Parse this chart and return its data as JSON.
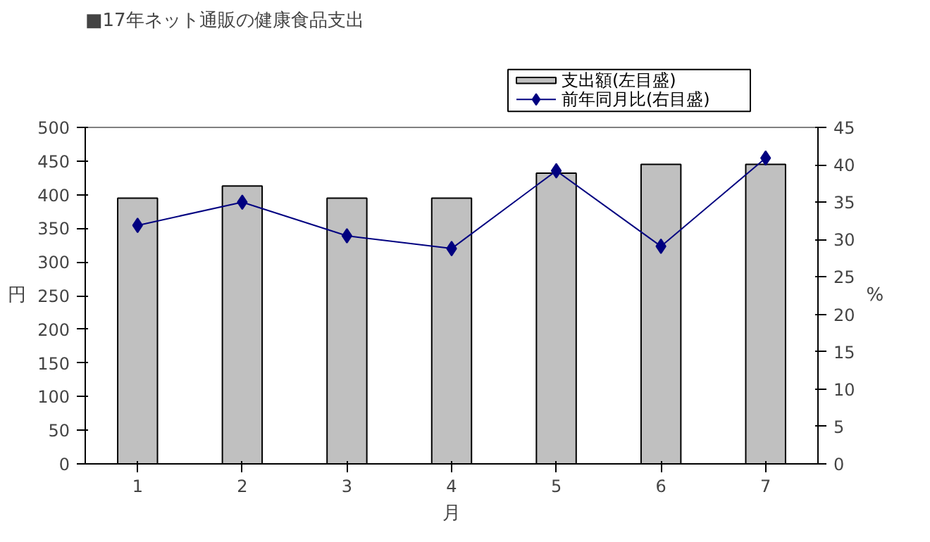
{
  "chart_data": {
    "type": "bar",
    "title": "■17年ネット通販の健康食品支出",
    "xlabel": "月",
    "ylabel": "円",
    "y2label": "%",
    "categories": [
      "1",
      "2",
      "3",
      "4",
      "5",
      "6",
      "7"
    ],
    "series": [
      {
        "name": "支出額(左目盛)",
        "color": "#c0c0c0",
        "values": [
          395,
          413,
          395,
          395,
          432,
          445,
          445
        ]
      },
      {
        "name": "前年同月比(右目盛)",
        "type": "line",
        "axis": "y2",
        "color": "#000080",
        "marker": "diamond",
        "values": [
          31.9,
          35.0,
          30.5,
          28.8,
          39.2,
          29.1,
          40.9
        ]
      }
    ],
    "ylim": [
      0,
      500
    ],
    "yticks": [
      0,
      50,
      100,
      150,
      200,
      250,
      300,
      350,
      400,
      450,
      500
    ],
    "y2lim": [
      0,
      45
    ],
    "y2ticks": [
      0,
      5,
      10,
      15,
      20,
      25,
      30,
      35,
      40,
      45
    ],
    "grid": false,
    "legend": "top right"
  }
}
